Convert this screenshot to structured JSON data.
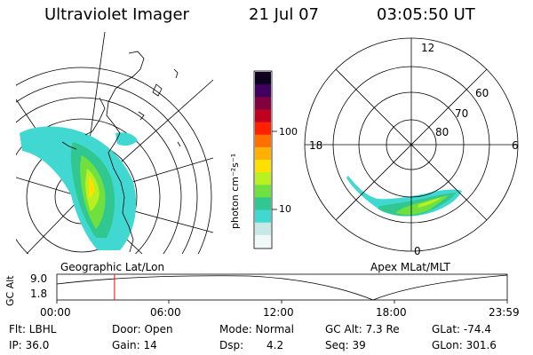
{
  "header": {
    "instrument": "Ultraviolet Imager",
    "date": "21 Jul 07",
    "time": "03:05:50 UT"
  },
  "geo_map": {
    "label": "Geographic Lat/Lon"
  },
  "apex_map": {
    "label": "Apex MLat/MLT",
    "mlt_labels": [
      "12",
      "18",
      "6",
      "0"
    ],
    "mlat_labels": [
      "60",
      "70",
      "80"
    ]
  },
  "colorbar": {
    "unit_label": "photon cm⁻²s⁻¹",
    "ticks": [
      "100",
      "10"
    ]
  },
  "altitude_plot": {
    "ylabel": "GC Alt",
    "yticks": [
      "9.0",
      "1.8"
    ],
    "xticks": [
      "00:00",
      "06:00",
      "12:00",
      "18:00",
      "23:59"
    ],
    "current_time_fraction": 0.128
  },
  "info": {
    "row1": [
      "Flt: LBHL",
      "Door: Open",
      "Mode: Normal",
      "GC Alt: 7.3 Re",
      "GLat: -74.4"
    ],
    "row2": [
      "IP: 36.0",
      "Gain: 14",
      "Dsp:",
      "4.2",
      "Seq: 39",
      "GLon: 301.6"
    ]
  },
  "colors": {
    "colorbar": [
      "#f0f8f8",
      "#c8e8e8",
      "#40d8d0",
      "#30c890",
      "#70e040",
      "#b8f020",
      "#ffe000",
      "#ffb000",
      "#ff7000",
      "#ff2000",
      "#c00020",
      "#800040",
      "#400060",
      "#100020"
    ],
    "marker": "#ff0000"
  }
}
